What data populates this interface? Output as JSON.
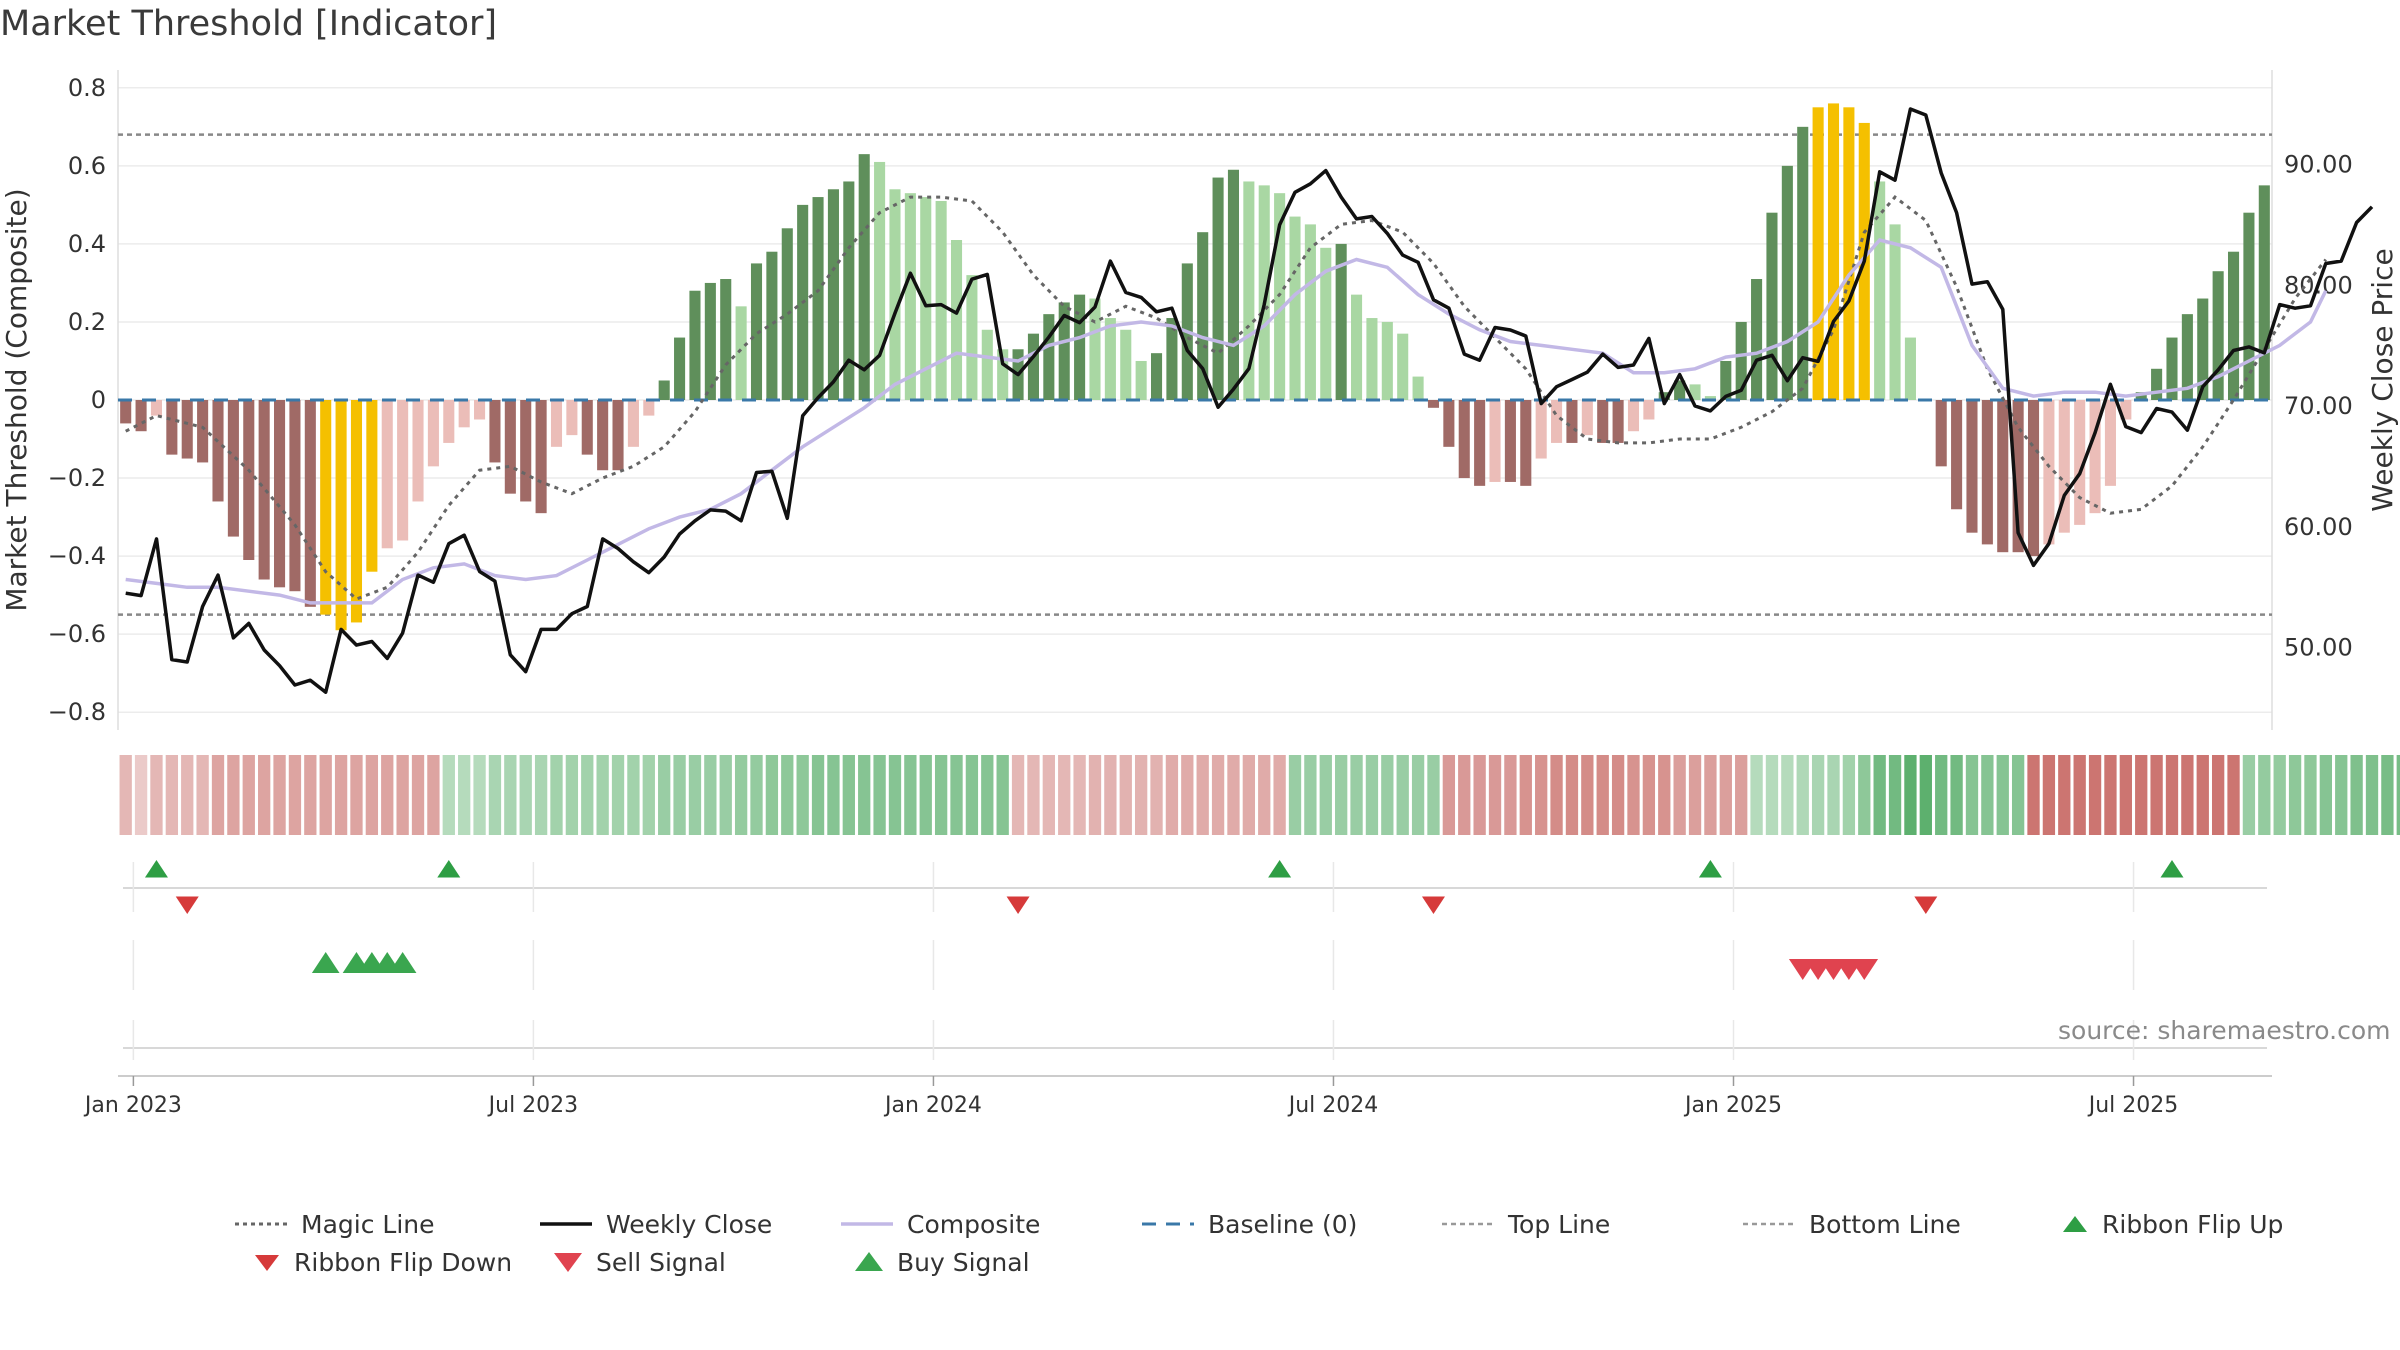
{
  "title": "Market Threshold [Indicator]",
  "source": "source: sharemaestro.com",
  "colors": {
    "strong_green": "#5f8f5b",
    "light_green": "#a9d7a3",
    "strong_red": "#a06a66",
    "light_red": "#ebbdb8",
    "extreme": "#f5c000",
    "close": "#111111",
    "composite": "#c2b8e6",
    "magic": "#666666",
    "baseline": "#3a78a8",
    "guide": "#888888",
    "up_marker": "#2e9e44",
    "down_marker": "#d63a3a"
  },
  "chart_data": {
    "type": "bar",
    "ylabel": "Market Threshold (Composite)",
    "y2label": "Weekly Close Price",
    "ylim": [
      -0.82,
      0.82
    ],
    "y2lim": [
      44,
      97
    ],
    "yticks": [
      "0.8",
      "0.6",
      "0.4",
      "0.2",
      "0",
      "−0.2",
      "−0.4",
      "−0.6",
      "−0.8"
    ],
    "ytick_values": [
      0.8,
      0.6,
      0.4,
      0.2,
      0,
      -0.2,
      -0.4,
      -0.6,
      -0.8
    ],
    "y2ticks": [
      "90.00",
      "80.00",
      "70.00",
      "60.00",
      "50.00"
    ],
    "y2tick_values": [
      90,
      80,
      70,
      60,
      50
    ],
    "xticks": [
      "Jan 2023",
      "Jul 2023",
      "Jan 2024",
      "Jul 2024",
      "Jan 2025",
      "Jul 2025"
    ],
    "xtick_weeks": [
      1,
      27,
      53,
      79,
      105,
      131
    ],
    "top_line": 0.68,
    "bottom_line": -0.55,
    "baseline": 0,
    "histogram": [
      -0.06,
      -0.08,
      -0.04,
      -0.14,
      -0.15,
      -0.16,
      -0.26,
      -0.35,
      -0.41,
      -0.46,
      -0.48,
      -0.49,
      -0.53,
      -0.55,
      -0.59,
      -0.57,
      -0.44,
      -0.38,
      -0.36,
      -0.26,
      -0.17,
      -0.11,
      -0.07,
      -0.05,
      -0.16,
      -0.24,
      -0.26,
      -0.29,
      -0.12,
      -0.09,
      -0.14,
      -0.18,
      -0.18,
      -0.12,
      -0.04,
      0.05,
      0.16,
      0.28,
      0.3,
      0.31,
      0.24,
      0.35,
      0.38,
      0.44,
      0.5,
      0.52,
      0.54,
      0.56,
      0.63,
      0.61,
      0.54,
      0.53,
      0.52,
      0.51,
      0.41,
      0.32,
      0.18,
      0.13,
      0.13,
      0.17,
      0.22,
      0.25,
      0.27,
      0.26,
      0.21,
      0.18,
      0.1,
      0.12,
      0.21,
      0.35,
      0.43,
      0.57,
      0.59,
      0.56,
      0.55,
      0.53,
      0.47,
      0.45,
      0.39,
      0.4,
      0.27,
      0.21,
      0.2,
      0.17,
      0.06,
      -0.02,
      -0.12,
      -0.2,
      -0.22,
      -0.21,
      -0.21,
      -0.22,
      -0.15,
      -0.11,
      -0.11,
      -0.09,
      -0.11,
      -0.11,
      -0.08,
      -0.05,
      0.02,
      0.05,
      0.04,
      0.01,
      0.1,
      0.2,
      0.31,
      0.48,
      0.6,
      0.7,
      0.75,
      0.76,
      0.75,
      0.71,
      0.56,
      0.45,
      0.16,
      0.0,
      -0.17,
      -0.28,
      -0.34,
      -0.37,
      -0.39,
      -0.39,
      -0.4,
      -0.37,
      -0.34,
      -0.32,
      -0.29,
      -0.22,
      -0.05,
      0.02,
      0.08,
      0.16,
      0.22,
      0.26,
      0.33,
      0.38,
      0.48,
      0.55
    ],
    "extreme_weeks": [
      13,
      14,
      15,
      16,
      110,
      111,
      112,
      113
    ],
    "magic_line": [
      [
        0,
        -0.08
      ],
      [
        2,
        -0.04
      ],
      [
        5,
        -0.07
      ],
      [
        8,
        -0.18
      ],
      [
        11,
        -0.32
      ],
      [
        13,
        -0.44
      ],
      [
        15,
        -0.51
      ],
      [
        17,
        -0.48
      ],
      [
        19,
        -0.39
      ],
      [
        21,
        -0.27
      ],
      [
        23,
        -0.18
      ],
      [
        25,
        -0.17
      ],
      [
        27,
        -0.21
      ],
      [
        29,
        -0.24
      ],
      [
        31,
        -0.2
      ],
      [
        33,
        -0.17
      ],
      [
        35,
        -0.12
      ],
      [
        37,
        -0.03
      ],
      [
        39,
        0.09
      ],
      [
        41,
        0.17
      ],
      [
        43,
        0.22
      ],
      [
        45,
        0.28
      ],
      [
        47,
        0.39
      ],
      [
        49,
        0.48
      ],
      [
        51,
        0.52
      ],
      [
        53,
        0.52
      ],
      [
        55,
        0.51
      ],
      [
        57,
        0.43
      ],
      [
        59,
        0.32
      ],
      [
        61,
        0.24
      ],
      [
        63,
        0.2
      ],
      [
        65,
        0.24
      ],
      [
        67,
        0.21
      ],
      [
        69,
        0.16
      ],
      [
        71,
        0.12
      ],
      [
        73,
        0.19
      ],
      [
        75,
        0.27
      ],
      [
        77,
        0.39
      ],
      [
        79,
        0.45
      ],
      [
        81,
        0.46
      ],
      [
        83,
        0.43
      ],
      [
        85,
        0.35
      ],
      [
        87,
        0.24
      ],
      [
        89,
        0.16
      ],
      [
        91,
        0.08
      ],
      [
        93,
        -0.04
      ],
      [
        95,
        -0.1
      ],
      [
        97,
        -0.11
      ],
      [
        99,
        -0.11
      ],
      [
        101,
        -0.1
      ],
      [
        103,
        -0.1
      ],
      [
        105,
        -0.07
      ],
      [
        107,
        -0.03
      ],
      [
        109,
        0.03
      ],
      [
        111,
        0.18
      ],
      [
        113,
        0.43
      ],
      [
        115,
        0.52
      ],
      [
        117,
        0.46
      ],
      [
        119,
        0.29
      ],
      [
        121,
        0.08
      ],
      [
        123,
        -0.07
      ],
      [
        125,
        -0.17
      ],
      [
        127,
        -0.25
      ],
      [
        129,
        -0.29
      ],
      [
        131,
        -0.28
      ],
      [
        133,
        -0.22
      ],
      [
        135,
        -0.12
      ],
      [
        137,
        0.0
      ],
      [
        139,
        0.13
      ],
      [
        141,
        0.26
      ],
      [
        143,
        0.36
      ]
    ],
    "composite": [
      [
        0,
        -0.46
      ],
      [
        2,
        -0.47
      ],
      [
        4,
        -0.48
      ],
      [
        6,
        -0.48
      ],
      [
        8,
        -0.49
      ],
      [
        10,
        -0.5
      ],
      [
        12,
        -0.52
      ],
      [
        14,
        -0.52
      ],
      [
        16,
        -0.52
      ],
      [
        18,
        -0.46
      ],
      [
        20,
        -0.43
      ],
      [
        22,
        -0.42
      ],
      [
        24,
        -0.45
      ],
      [
        26,
        -0.46
      ],
      [
        28,
        -0.45
      ],
      [
        30,
        -0.41
      ],
      [
        32,
        -0.37
      ],
      [
        34,
        -0.33
      ],
      [
        36,
        -0.3
      ],
      [
        38,
        -0.28
      ],
      [
        40,
        -0.24
      ],
      [
        42,
        -0.18
      ],
      [
        44,
        -0.12
      ],
      [
        46,
        -0.07
      ],
      [
        48,
        -0.02
      ],
      [
        50,
        0.04
      ],
      [
        52,
        0.08
      ],
      [
        54,
        0.12
      ],
      [
        56,
        0.11
      ],
      [
        58,
        0.1
      ],
      [
        60,
        0.14
      ],
      [
        62,
        0.16
      ],
      [
        64,
        0.19
      ],
      [
        66,
        0.2
      ],
      [
        68,
        0.19
      ],
      [
        70,
        0.16
      ],
      [
        72,
        0.14
      ],
      [
        74,
        0.19
      ],
      [
        76,
        0.27
      ],
      [
        78,
        0.33
      ],
      [
        80,
        0.36
      ],
      [
        82,
        0.34
      ],
      [
        84,
        0.27
      ],
      [
        86,
        0.22
      ],
      [
        88,
        0.18
      ],
      [
        90,
        0.15
      ],
      [
        92,
        0.14
      ],
      [
        94,
        0.13
      ],
      [
        96,
        0.12
      ],
      [
        98,
        0.07
      ],
      [
        100,
        0.07
      ],
      [
        102,
        0.08
      ],
      [
        104,
        0.11
      ],
      [
        106,
        0.12
      ],
      [
        108,
        0.15
      ],
      [
        110,
        0.2
      ],
      [
        112,
        0.32
      ],
      [
        114,
        0.41
      ],
      [
        116,
        0.39
      ],
      [
        118,
        0.34
      ],
      [
        120,
        0.14
      ],
      [
        122,
        0.03
      ],
      [
        124,
        0.01
      ],
      [
        126,
        0.02
      ],
      [
        128,
        0.02
      ],
      [
        130,
        0.01
      ],
      [
        132,
        0.02
      ],
      [
        134,
        0.03
      ],
      [
        136,
        0.06
      ],
      [
        138,
        0.1
      ],
      [
        140,
        0.14
      ],
      [
        142,
        0.2
      ],
      [
        143,
        0.28
      ]
    ],
    "weekly_close": [
      54.5,
      54.3,
      59.0,
      49.0,
      48.8,
      53.4,
      56.0,
      50.8,
      52.0,
      49.8,
      48.5,
      46.9,
      47.3,
      46.3,
      51.5,
      50.2,
      50.5,
      49.1,
      51.2,
      56.0,
      55.4,
      58.6,
      59.3,
      56.3,
      55.5,
      49.4,
      48.0,
      51.5,
      51.5,
      52.8,
      53.4,
      59.0,
      58.2,
      57.1,
      56.2,
      57.5,
      59.4,
      60.5,
      61.4,
      61.3,
      60.5,
      64.5,
      64.6,
      60.7,
      69.2,
      70.7,
      72.0,
      73.8,
      73.0,
      74.2,
      77.7,
      81.0,
      78.3,
      78.4,
      77.7,
      80.5,
      80.9,
      73.5,
      72.6,
      74.1,
      75.7,
      77.5,
      76.9,
      78.2,
      82.0,
      79.4,
      79.0,
      77.8,
      78.1,
      74.6,
      73.1,
      69.9,
      71.4,
      73.1,
      78.4,
      85.0,
      87.7,
      88.4,
      89.5,
      87.3,
      85.5,
      85.7,
      84.3,
      82.5,
      81.9,
      78.8,
      78.1,
      74.3,
      73.8,
      76.5,
      76.3,
      75.8,
      70.2,
      71.6,
      72.2,
      72.8,
      74.3,
      73.2,
      73.4,
      75.6,
      70.2,
      72.6,
      70.0,
      69.6,
      70.8,
      71.3,
      73.8,
      74.2,
      72.1,
      74.0,
      73.7,
      77.0,
      78.7,
      82.0,
      89.4,
      88.7,
      94.6,
      94.1,
      89.3,
      86.0,
      80.1,
      80.3,
      78.0,
      59.5,
      56.8,
      58.6,
      62.6,
      64.4,
      67.8,
      71.8,
      68.3,
      67.8,
      69.8,
      69.5,
      68.0,
      71.6,
      73.0,
      74.6,
      74.9,
      74.4,
      78.4,
      78.1,
      78.3,
      81.8,
      82.0,
      85.2,
      86.5
    ],
    "ribbon": [
      [
        -0.3,
        -0.15,
        -0.3,
        -0.3,
        -0.3,
        -0.3,
        -0.45,
        -0.45,
        -0.45,
        -0.45,
        -0.45,
        -0.45,
        -0.45,
        -0.45,
        -0.45,
        -0.45,
        -0.45,
        -0.45,
        -0.45,
        -0.45,
        -0.45,
        0.25,
        0.25,
        0.25,
        0.35,
        0.35,
        0.35,
        0.35,
        0.4,
        0.4,
        0.4,
        0.4,
        0.4,
        0.4,
        0.4,
        0.45,
        0.45,
        0.45,
        0.45,
        0.45,
        0.5,
        0.5,
        0.55,
        0.55,
        0.55,
        0.6,
        0.6,
        0.6,
        0.6,
        0.6,
        0.6,
        0.6,
        0.6,
        0.6,
        0.6,
        0.6,
        0.6,
        0.6,
        -0.3,
        -0.3,
        -0.3,
        -0.3,
        -0.3,
        -0.35,
        -0.35,
        -0.35,
        -0.35,
        -0.35,
        -0.4,
        -0.4,
        -0.4,
        -0.4,
        -0.4,
        -0.4,
        -0.4,
        -0.4,
        0.45,
        0.45,
        0.45,
        0.45,
        0.45,
        0.45,
        0.45,
        0.45,
        0.45,
        0.45,
        -0.55,
        -0.55,
        -0.55,
        -0.55,
        -0.55,
        -0.6,
        -0.6,
        -0.65,
        -0.65,
        -0.65,
        -0.65,
        -0.65,
        -0.6,
        -0.6,
        -0.6,
        -0.5,
        -0.5,
        -0.5,
        -0.5,
        -0.5,
        0.25,
        0.25,
        0.25,
        0.3,
        0.35,
        0.35,
        0.4,
        0.55,
        0.75,
        0.75,
        0.9,
        0.9,
        0.75,
        0.75,
        0.6,
        0.6,
        0.6,
        0.6,
        -0.85,
        -0.85,
        -0.85,
        -0.85,
        -0.85,
        -0.85,
        -0.85,
        -0.85,
        -0.85,
        -0.85,
        -0.85,
        -0.85,
        -0.85,
        -0.85,
        0.45,
        0.5,
        0.5,
        0.55,
        0.55,
        0.6,
        0.6,
        0.65,
        0.65,
        0.7,
        0.7
      ]
    ],
    "ribbon_flip_up_weeks": [
      2,
      21,
      75,
      103,
      133
    ],
    "ribbon_flip_down_weeks": [
      4,
      58,
      85,
      117
    ],
    "buy_signal_weeks": [
      13,
      15,
      16,
      17,
      18
    ],
    "sell_signal_weeks": [
      109,
      110,
      111,
      112,
      113
    ],
    "legend_placement": "bottom",
    "legend": [
      "Magic Line",
      "Weekly Close",
      "Composite",
      "Baseline (0)",
      "Top Line",
      "Bottom Line",
      "Ribbon Flip Up",
      "Ribbon Flip Down",
      "Sell Signal",
      "Buy Signal"
    ]
  }
}
